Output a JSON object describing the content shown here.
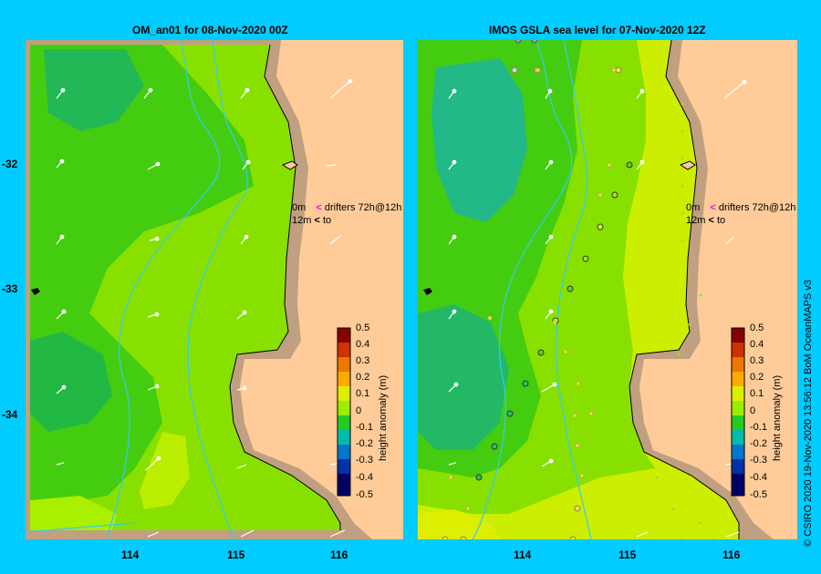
{
  "left_panel": {
    "title": "OM_an01  for 08-Nov-2020 00Z",
    "legend": {
      "line1_depth": "0m",
      "line1_text": "drifters 72h@12h",
      "line2_depth": "12m",
      "line2_text": "to"
    }
  },
  "right_panel": {
    "title": "IMOS  GSLA sea level   for 07-Nov-2020 12Z",
    "legend": {
      "line1_depth": "0m",
      "line1_text": "drifters 72h@12h",
      "line2_depth": "12m",
      "line2_text": "to"
    }
  },
  "lat_ticks": [
    "-32",
    "-33",
    "-34"
  ],
  "lon_ticks": [
    "114",
    "115",
    "116"
  ],
  "colorbar": {
    "title": "height anomaly (m)",
    "ticks": [
      "0.5",
      "0.4",
      "0.3",
      "0.2",
      "0.1",
      "0",
      "-0.1",
      "-0.2",
      "-0.3",
      "-0.4",
      "-0.5"
    ],
    "colors": [
      "#880000",
      "#cc3300",
      "#ee7700",
      "#ffaa00",
      "#ddee00",
      "#99ee00",
      "#22cc22",
      "#00bbaa",
      "#0077cc",
      "#0033aa",
      "#000066"
    ]
  },
  "credit": "© CSIRO 2020   19-Nov-2020 13:56:12 BoM OceanMAPS v3",
  "colors": {
    "background": "#00ccff",
    "land": "#ffcc99",
    "shelf": "#c0a080",
    "legend_arrow_0m": "#ff00ff",
    "legend_arrow_12m": "#000000"
  }
}
